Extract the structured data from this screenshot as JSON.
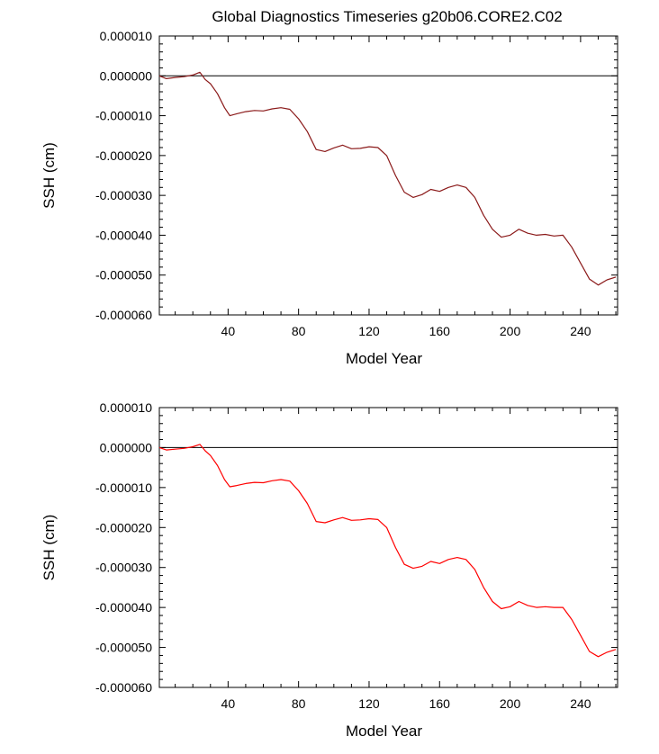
{
  "title": "Global Diagnostics Timeseries g20b06.CORE2.C02",
  "colors": {
    "monthly_line": "#8b1a1a",
    "annual_line": "#ff0000",
    "axis": "#000000"
  },
  "chart_data": [
    {
      "type": "line",
      "title": "Global Diagnostics Timeseries g20b06.CORE2.C02",
      "xlabel": "Model Year",
      "ylabel": "SSH (cm)",
      "xlim": [
        1,
        261
      ],
      "ylim": [
        -6e-05,
        1e-05
      ],
      "x_ticks": [
        40,
        80,
        120,
        160,
        200,
        240
      ],
      "x_tick_labels": [
        "40",
        "80",
        "120",
        "160",
        "200",
        "240"
      ],
      "y_ticks": [
        1e-05,
        0,
        -1e-05,
        -2e-05,
        -3e-05,
        -4e-05,
        -5e-05,
        -6e-05
      ],
      "y_tick_labels": [
        "0.000010",
        "0.000000",
        "-0.000010",
        "-0.000020",
        "-0.000030",
        "-0.000040",
        "-0.000050",
        "-0.000060"
      ],
      "reference_line_y": 0,
      "grid": false,
      "series": [
        {
          "color": "#8b1a1a",
          "x": [
            1,
            5,
            10,
            15,
            20,
            24,
            27,
            30,
            34,
            38,
            41,
            45,
            50,
            55,
            60,
            65,
            70,
            75,
            80,
            85,
            90,
            95,
            100,
            105,
            110,
            115,
            120,
            125,
            130,
            135,
            140,
            145,
            150,
            155,
            160,
            165,
            170,
            175,
            180,
            185,
            190,
            195,
            200,
            205,
            210,
            215,
            220,
            225,
            230,
            235,
            240,
            245,
            250,
            255,
            260
          ],
          "values": [
            0.0,
            -7e-07,
            -4e-07,
            -2e-07,
            2e-07,
            9e-07,
            -9e-07,
            -2e-06,
            -4.5e-06,
            -8e-06,
            -1e-05,
            -9.5e-06,
            -9e-06,
            -8.7e-06,
            -8.8e-06,
            -8.3e-06,
            -8e-06,
            -8.4e-06,
            -1.08e-05,
            -1.4e-05,
            -1.85e-05,
            -1.9e-05,
            -1.81e-05,
            -1.74e-05,
            -1.83e-05,
            -1.82e-05,
            -1.78e-05,
            -1.8e-05,
            -2e-05,
            -2.5e-05,
            -2.92e-05,
            -3.05e-05,
            -2.98e-05,
            -2.85e-05,
            -2.9e-05,
            -2.8e-05,
            -2.74e-05,
            -2.8e-05,
            -3.05e-05,
            -3.5e-05,
            -3.85e-05,
            -4.05e-05,
            -4e-05,
            -3.85e-05,
            -3.95e-05,
            -4e-05,
            -3.98e-05,
            -4.02e-05,
            -4e-05,
            -4.3e-05,
            -4.7e-05,
            -5.1e-05,
            -5.25e-05,
            -5.12e-05,
            -5.05e-05
          ]
        }
      ]
    },
    {
      "type": "line",
      "xlabel": "Model Year",
      "ylabel": "SSH (cm)",
      "xlim": [
        1,
        261
      ],
      "ylim": [
        -6e-05,
        1e-05
      ],
      "x_ticks": [
        40,
        80,
        120,
        160,
        200,
        240
      ],
      "x_tick_labels": [
        "40",
        "80",
        "120",
        "160",
        "200",
        "240"
      ],
      "y_ticks": [
        1e-05,
        0,
        -1e-05,
        -2e-05,
        -3e-05,
        -4e-05,
        -5e-05,
        -6e-05
      ],
      "y_tick_labels": [
        "0.000010",
        "0.000000",
        "-0.000010",
        "-0.000020",
        "-0.000030",
        "-0.000040",
        "-0.000050",
        "-0.000060"
      ],
      "reference_line_y": 0,
      "grid": false,
      "series": [
        {
          "color": "#ff0000",
          "x": [
            1,
            5,
            10,
            15,
            20,
            24,
            27,
            30,
            34,
            38,
            41,
            45,
            50,
            55,
            60,
            65,
            70,
            75,
            80,
            85,
            90,
            95,
            100,
            105,
            110,
            115,
            120,
            125,
            130,
            135,
            140,
            145,
            150,
            155,
            160,
            165,
            170,
            175,
            180,
            185,
            190,
            195,
            200,
            205,
            210,
            215,
            220,
            225,
            230,
            235,
            240,
            245,
            250,
            255,
            260
          ],
          "values": [
            0.0,
            -6e-07,
            -4e-07,
            -2e-07,
            2e-07,
            8e-07,
            -8e-07,
            -2e-06,
            -4.5e-06,
            -8e-06,
            -9.8e-06,
            -9.5e-06,
            -9e-06,
            -8.7e-06,
            -8.8e-06,
            -8.3e-06,
            -8e-06,
            -8.4e-06,
            -1.08e-05,
            -1.4e-05,
            -1.85e-05,
            -1.88e-05,
            -1.81e-05,
            -1.75e-05,
            -1.82e-05,
            -1.81e-05,
            -1.78e-05,
            -1.8e-05,
            -2e-05,
            -2.5e-05,
            -2.92e-05,
            -3.02e-05,
            -2.97e-05,
            -2.85e-05,
            -2.9e-05,
            -2.8e-05,
            -2.75e-05,
            -2.8e-05,
            -3.05e-05,
            -3.5e-05,
            -3.85e-05,
            -4.03e-05,
            -3.98e-05,
            -3.85e-05,
            -3.95e-05,
            -4e-05,
            -3.98e-05,
            -4e-05,
            -4e-05,
            -4.3e-05,
            -4.7e-05,
            -5.1e-05,
            -5.23e-05,
            -5.12e-05,
            -5.05e-05
          ]
        }
      ]
    }
  ]
}
